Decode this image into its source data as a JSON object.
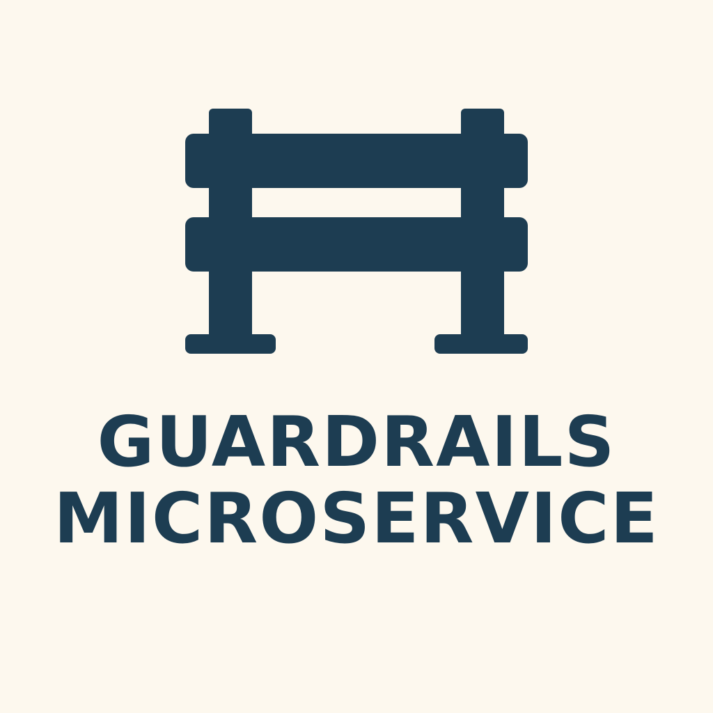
{
  "brand": {
    "line1": "GUARDRAILS",
    "line2": "MICROSERVICE",
    "icon": "guardrail-icon",
    "ink_color": "#1d3d52",
    "background_color": "#fdf8ee"
  }
}
